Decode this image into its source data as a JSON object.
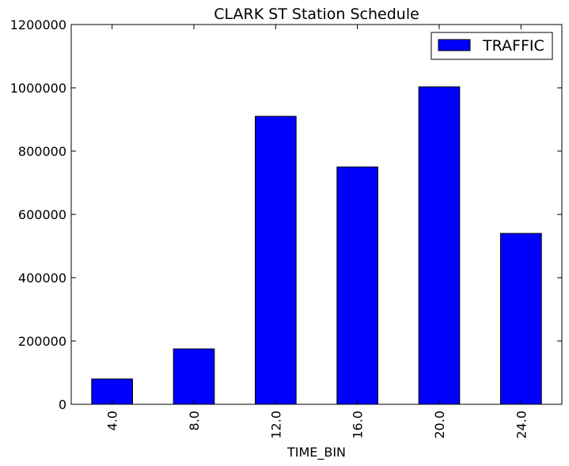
{
  "chart_data": {
    "type": "bar",
    "title": "CLARK ST Station Schedule",
    "xlabel": "TIME_BIN",
    "ylabel": "",
    "categories": [
      "4.0",
      "8.0",
      "12.0",
      "16.0",
      "20.0",
      "24.0"
    ],
    "series": [
      {
        "name": "TRAFFIC",
        "color": "#0000ff",
        "values": [
          80000,
          175000,
          910000,
          750000,
          1003000,
          540000
        ]
      }
    ],
    "ylim": [
      0,
      1200000
    ],
    "yticks": [
      "0",
      "200000",
      "400000",
      "600000",
      "800000",
      "1000000",
      "1200000"
    ],
    "ytick_values": [
      0,
      200000,
      400000,
      600000,
      800000,
      1000000,
      1200000
    ],
    "legend_position": "top-right",
    "grid": false
  }
}
